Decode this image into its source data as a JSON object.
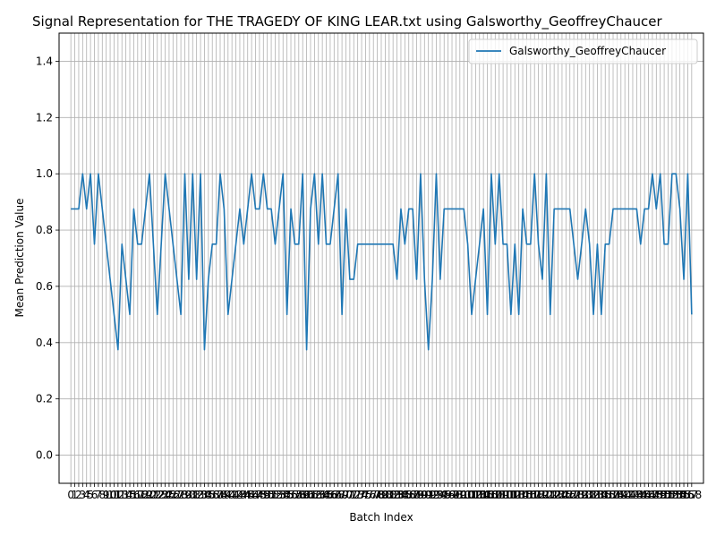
{
  "chart_data": {
    "type": "line",
    "title": "Signal Representation for THE TRAGEDY OF KING LEAR.txt using Galsworthy_GeoffreyChaucer",
    "xlabel": "Batch Index",
    "ylabel": "Mean Prediction Value",
    "xlim": [
      -3,
      161
    ],
    "ylim": [
      -0.1,
      1.5
    ],
    "yticks": [
      0.0,
      0.2,
      0.4,
      0.6,
      0.8,
      1.0,
      1.2,
      1.4
    ],
    "ytick_labels": [
      "0.0",
      "0.2",
      "0.4",
      "0.6",
      "0.8",
      "1.0",
      "1.2",
      "1.4"
    ],
    "grid": true,
    "legend_position": "top-right",
    "colors": {
      "series": "#1f77b4",
      "grid": "#b0b0b0"
    },
    "series": [
      {
        "name": "Galsworthy_GeoffreyChaucer",
        "x": [
          0,
          1,
          2,
          3,
          4,
          5,
          6,
          7,
          8,
          9,
          10,
          11,
          12,
          13,
          14,
          15,
          16,
          17,
          18,
          19,
          20,
          21,
          22,
          23,
          24,
          25,
          26,
          27,
          28,
          29,
          30,
          31,
          32,
          33,
          34,
          35,
          36,
          37,
          38,
          39,
          40,
          41,
          42,
          43,
          44,
          45,
          46,
          47,
          48,
          49,
          50,
          51,
          52,
          53,
          54,
          55,
          56,
          57,
          58,
          59,
          60,
          61,
          62,
          63,
          64,
          65,
          66,
          67,
          68,
          69,
          70,
          71,
          72,
          73,
          74,
          75,
          76,
          77,
          78,
          79,
          80,
          81,
          82,
          83,
          84,
          85,
          86,
          87,
          88,
          89,
          90,
          91,
          92,
          93,
          94,
          95,
          96,
          97,
          98,
          99,
          100,
          101,
          102,
          103,
          104,
          105,
          106,
          107,
          108,
          109,
          110,
          111,
          112,
          113,
          114,
          115,
          116,
          117,
          118,
          119,
          120,
          121,
          122,
          123,
          124,
          125,
          126,
          127,
          128,
          129,
          130,
          131,
          132,
          133,
          134,
          135,
          136,
          137,
          138,
          139,
          140,
          141,
          142,
          143,
          144,
          145,
          146,
          147,
          148,
          149,
          150,
          151,
          152,
          153,
          154,
          155,
          156,
          157,
          158
        ],
        "values": [
          0.875,
          0.875,
          0.875,
          1.0,
          0.875,
          1.0,
          0.75,
          1.0,
          0.875,
          0.75,
          0.625,
          0.5,
          0.375,
          0.75,
          0.625,
          0.5,
          0.875,
          0.75,
          0.75,
          0.875,
          1.0,
          0.75,
          0.5,
          0.75,
          1.0,
          0.875,
          0.75,
          0.625,
          0.5,
          1.0,
          0.625,
          1.0,
          0.625,
          1.0,
          0.375,
          0.625,
          0.75,
          0.75,
          1.0,
          0.875,
          0.5,
          0.625,
          0.75,
          0.875,
          0.75,
          0.875,
          1.0,
          0.875,
          0.875,
          1.0,
          0.875,
          0.875,
          0.75,
          0.875,
          1.0,
          0.5,
          0.875,
          0.75,
          0.75,
          1.0,
          0.375,
          0.875,
          1.0,
          0.75,
          1.0,
          0.75,
          0.75,
          0.875,
          1.0,
          0.5,
          0.875,
          0.625,
          0.625,
          0.75,
          0.75,
          0.75,
          0.75,
          0.75,
          0.75,
          0.75,
          0.75,
          0.75,
          0.75,
          0.625,
          0.875,
          0.75,
          0.875,
          0.875,
          0.625,
          1.0,
          0.625,
          0.375,
          0.625,
          1.0,
          0.625,
          0.875,
          0.875,
          0.875,
          0.875,
          0.875,
          0.875,
          0.75,
          0.5,
          0.625,
          0.75,
          0.875,
          0.5,
          1.0,
          0.75,
          1.0,
          0.75,
          0.75,
          0.5,
          0.75,
          0.5,
          0.875,
          0.75,
          0.75,
          1.0,
          0.75,
          0.625,
          1.0,
          0.5,
          0.875,
          0.875,
          0.875,
          0.875,
          0.875,
          0.75,
          0.625,
          0.75,
          0.875,
          0.75,
          0.5,
          0.75,
          0.5,
          0.75,
          0.75,
          0.875,
          0.875,
          0.875,
          0.875,
          0.875,
          0.875,
          0.875,
          0.75,
          0.875,
          0.875,
          1.0,
          0.875,
          1.0,
          0.75,
          0.75,
          1.0,
          1.0,
          0.875,
          0.625,
          1.0,
          0.5
        ]
      }
    ]
  }
}
